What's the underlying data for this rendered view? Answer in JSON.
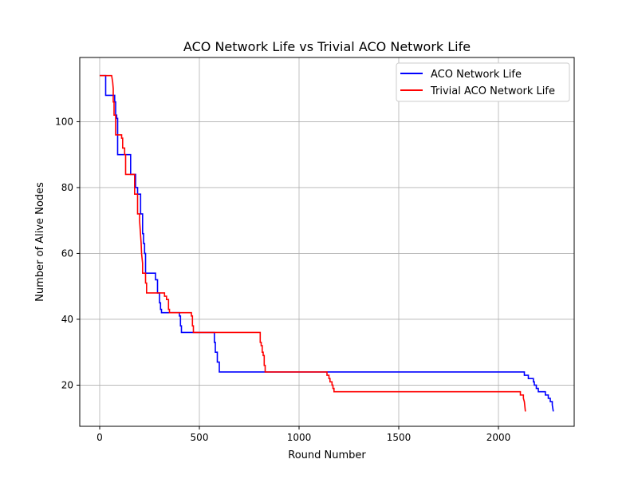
{
  "chart_data": {
    "type": "line",
    "title": "ACO Network Life vs Trivial ACO Network Life",
    "xlabel": "Round Number",
    "ylabel": "Number of Alive Nodes",
    "xlim": [
      -100,
      2380
    ],
    "ylim": [
      7.5,
      119.5
    ],
    "xticks": [
      0,
      500,
      1000,
      1500,
      2000
    ],
    "yticks": [
      20,
      40,
      60,
      80,
      100
    ],
    "grid": true,
    "legend_position": "top-right",
    "series": [
      {
        "name": "ACO Network Life",
        "color": "#0000ff",
        "x": [
          0,
          30,
          30,
          75,
          75,
          80,
          80,
          85,
          85,
          90,
          90,
          155,
          155,
          180,
          180,
          190,
          190,
          205,
          205,
          215,
          215,
          220,
          220,
          225,
          225,
          230,
          230,
          280,
          280,
          290,
          290,
          300,
          300,
          305,
          305,
          310,
          310,
          400,
          400,
          405,
          405,
          410,
          410,
          575,
          575,
          580,
          580,
          590,
          590,
          600,
          600,
          2130,
          2130,
          2150,
          2150,
          2175,
          2175,
          2180,
          2180,
          2190,
          2190,
          2200,
          2200,
          2235,
          2235,
          2250,
          2250,
          2260,
          2260,
          2270,
          2270,
          2275
        ],
        "y": [
          114,
          114,
          108,
          108,
          106,
          106,
          102,
          102,
          101,
          101,
          90,
          90,
          84,
          84,
          80,
          80,
          78,
          78,
          72,
          72,
          66,
          66,
          63,
          63,
          60,
          60,
          54,
          54,
          52,
          52,
          48,
          48,
          45,
          45,
          43,
          43,
          42,
          42,
          41,
          41,
          38,
          38,
          36,
          36,
          33,
          33,
          30,
          30,
          27,
          27,
          24,
          24,
          23,
          23,
          22,
          22,
          21,
          21,
          20,
          20,
          19,
          19,
          18,
          18,
          17,
          17,
          16,
          16,
          15,
          15,
          14,
          12
        ]
      },
      {
        "name": "Trivial ACO Network Life",
        "color": "#ff0000",
        "x": [
          0,
          55,
          60,
          65,
          68,
          68,
          72,
          72,
          80,
          80,
          110,
          110,
          115,
          115,
          125,
          125,
          130,
          130,
          175,
          175,
          190,
          190,
          200,
          200,
          208,
          210,
          215,
          215,
          230,
          230,
          235,
          235,
          325,
          325,
          335,
          335,
          345,
          345,
          350,
          350,
          460,
          460,
          465,
          465,
          470,
          470,
          805,
          805,
          810,
          810,
          815,
          815,
          820,
          820,
          825,
          825,
          830,
          830,
          1140,
          1140,
          1150,
          1150,
          1155,
          1155,
          1165,
          1165,
          1170,
          1170,
          1175,
          1175,
          2110,
          2110,
          2125,
          2125,
          2130,
          2135
        ],
        "y": [
          114,
          114,
          114,
          112,
          110,
          106,
          106,
          102,
          102,
          96,
          96,
          95,
          95,
          92,
          92,
          90,
          90,
          84,
          84,
          78,
          78,
          72,
          72,
          70,
          63,
          60,
          57,
          54,
          54,
          51,
          51,
          48,
          48,
          47,
          47,
          46,
          46,
          43,
          43,
          42,
          42,
          41,
          41,
          38,
          38,
          36,
          36,
          33,
          33,
          32,
          32,
          30,
          30,
          29,
          29,
          26,
          26,
          24,
          24,
          23,
          23,
          22,
          22,
          21,
          21,
          20,
          20,
          19,
          19,
          18,
          18,
          17,
          17,
          16,
          15,
          12
        ]
      }
    ]
  }
}
